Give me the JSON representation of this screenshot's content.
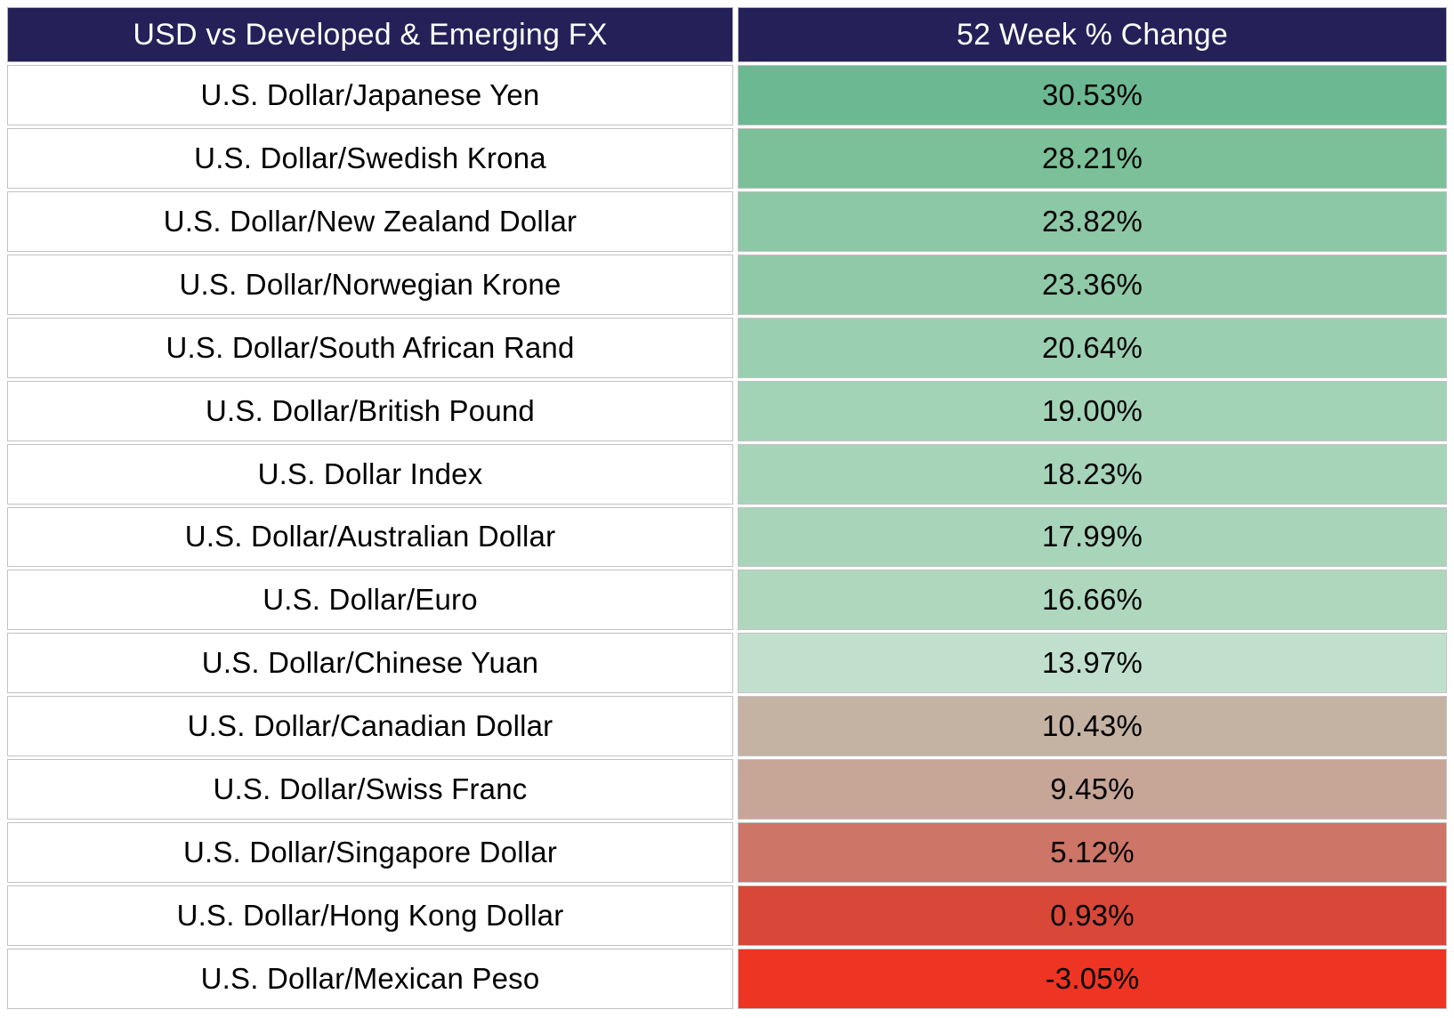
{
  "header": {
    "left": "USD vs Developed & Emerging FX",
    "right": "52 Week % Change",
    "bg_color": "#252058",
    "text_color": "#ffffff"
  },
  "border_color": "#c2c2c2",
  "rows": [
    {
      "pair": "U.S. Dollar/Japanese Yen",
      "change": "30.53%",
      "value": 30.53,
      "color": "#6cb892"
    },
    {
      "pair": "U.S. Dollar/Swedish Krona",
      "change": "28.21%",
      "value": 28.21,
      "color": "#7bc098"
    },
    {
      "pair": "U.S. Dollar/New Zealand Dollar",
      "change": "23.82%",
      "value": 23.82,
      "color": "#8dc8a6"
    },
    {
      "pair": "U.S. Dollar/Norwegian Krone",
      "change": "23.36%",
      "value": 23.36,
      "color": "#8fc9a7"
    },
    {
      "pair": "U.S. Dollar/South African Rand",
      "change": "20.64%",
      "value": 20.64,
      "color": "#9bcfb1"
    },
    {
      "pair": "U.S. Dollar/British Pound",
      "change": "19.00%",
      "value": 19.0,
      "color": "#a3d3b7"
    },
    {
      "pair": "U.S. Dollar Index",
      "change": "18.23%",
      "value": 18.23,
      "color": "#a6d4b9"
    },
    {
      "pair": "U.S. Dollar/Australian Dollar",
      "change": "17.99%",
      "value": 17.99,
      "color": "#a8d5ba"
    },
    {
      "pair": "U.S. Dollar/Euro",
      "change": "16.66%",
      "value": 16.66,
      "color": "#aed7be"
    },
    {
      "pair": "U.S. Dollar/Chinese Yuan",
      "change": "13.97%",
      "value": 13.97,
      "color": "#c0e0cd"
    },
    {
      "pair": "U.S. Dollar/Canadian Dollar",
      "change": "10.43%",
      "value": 10.43,
      "color": "#c4b2a3"
    },
    {
      "pair": "U.S. Dollar/Swiss Franc",
      "change": "9.45%",
      "value": 9.45,
      "color": "#c7a698"
    },
    {
      "pair": "U.S. Dollar/Singapore Dollar",
      "change": "5.12%",
      "value": 5.12,
      "color": "#cd7567"
    },
    {
      "pair": "U.S. Dollar/Hong Kong Dollar",
      "change": "0.93%",
      "value": 0.93,
      "color": "#d84738"
    },
    {
      "pair": "U.S. Dollar/Mexican Peso",
      "change": "-3.05%",
      "value": -3.05,
      "color": "#ee3423"
    }
  ],
  "chart_data": {
    "type": "table",
    "title": "USD vs Developed & Emerging FX",
    "columns": [
      "USD vs Developed & Emerging FX",
      "52 Week % Change"
    ],
    "categories": [
      "U.S. Dollar/Japanese Yen",
      "U.S. Dollar/Swedish Krona",
      "U.S. Dollar/New Zealand Dollar",
      "U.S. Dollar/Norwegian Krone",
      "U.S. Dollar/South African Rand",
      "U.S. Dollar/British Pound",
      "U.S. Dollar Index",
      "U.S. Dollar/Australian Dollar",
      "U.S. Dollar/Euro",
      "U.S. Dollar/Chinese Yuan",
      "U.S. Dollar/Canadian Dollar",
      "U.S. Dollar/Swiss Franc",
      "U.S. Dollar/Singapore Dollar",
      "U.S. Dollar/Hong Kong Dollar",
      "U.S. Dollar/Mexican Peso"
    ],
    "values": [
      30.53,
      28.21,
      23.82,
      23.36,
      20.64,
      19.0,
      18.23,
      17.99,
      16.66,
      13.97,
      10.43,
      9.45,
      5.12,
      0.93,
      -3.05
    ],
    "value_format": "percent",
    "color_scale": "green(high) to red(low) heatmap on value column"
  }
}
